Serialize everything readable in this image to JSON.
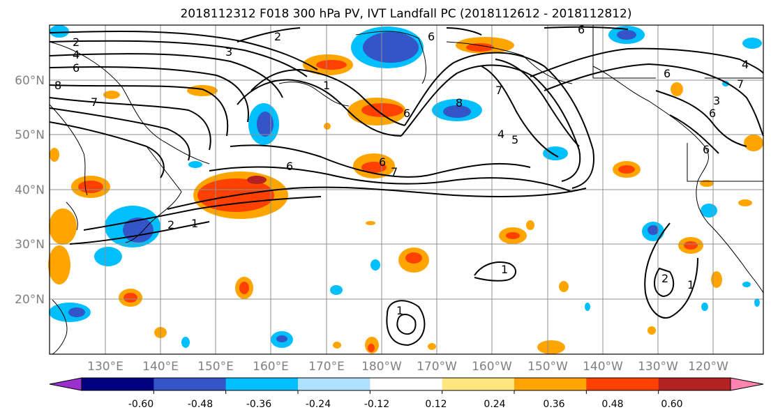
{
  "title": "2018112312 F018 300 hPa PV, IVT Landfall PC (2018112612 - 2018112812)",
  "map": {
    "lat_labels": [
      "60°N",
      "50°N",
      "40°N",
      "30°N",
      "20°N"
    ],
    "lon_labels": [
      "130°E",
      "140°E",
      "150°E",
      "160°E",
      "170°E",
      "180°W",
      "170°W",
      "160°W",
      "150°W",
      "140°W",
      "130°W",
      "120°W"
    ],
    "lat_values": [
      60,
      50,
      40,
      30,
      20
    ],
    "lon_values": [
      130,
      140,
      150,
      160,
      170,
      180,
      -170,
      -160,
      -150,
      -140,
      -130,
      -120
    ],
    "grid": true,
    "contour_labels": [
      "2",
      "4",
      "6",
      "3",
      "2",
      "6",
      "6",
      "6",
      "8",
      "7",
      "1",
      "8",
      "6",
      "7",
      "6",
      "7",
      "4",
      "5",
      "6",
      "6",
      "7",
      "4",
      "6",
      "3",
      "2",
      "1",
      "1",
      "2",
      "1",
      "1"
    ]
  },
  "colorbar": {
    "tick_labels": [
      "-0.60",
      "-0.48",
      "-0.36",
      "-0.24",
      "-0.12",
      "0.12",
      "0.24",
      "0.36",
      "0.48",
      "0.60"
    ],
    "colors": [
      "#9b30d0",
      "#000080",
      "#3455c8",
      "#00bfff",
      "#b0e0ff",
      "#ffffff",
      "#ffe680",
      "#ffa500",
      "#ff4000",
      "#b22222",
      "#ff85b0"
    ]
  }
}
